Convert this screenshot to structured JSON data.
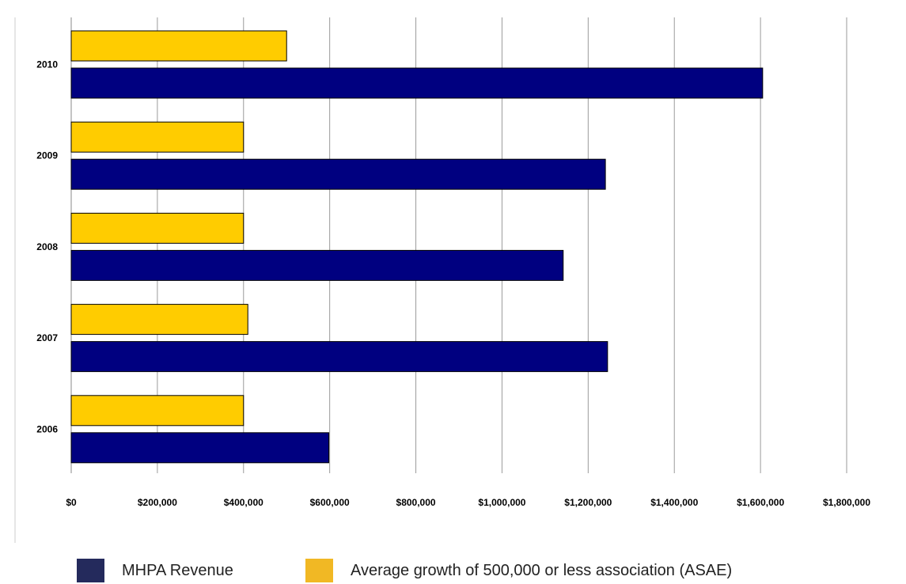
{
  "chart_data": {
    "type": "bar",
    "orientation": "horizontal",
    "categories": [
      "2010",
      "2009",
      "2008",
      "2007",
      "2006"
    ],
    "series": [
      {
        "name": "Average growth of 500,000 or less association (ASAE)",
        "color": "#ffcc00",
        "values": [
          500000,
          400000,
          400000,
          410000,
          400000
        ]
      },
      {
        "name": "MHPA Revenue",
        "color": "#000080",
        "values": [
          1605000,
          1240000,
          1142000,
          1245000,
          598000
        ]
      }
    ],
    "x_ticks": [
      "$0",
      "$200,000",
      "$400,000",
      "$600,000",
      "$800,000",
      "$1,000,000",
      "$1,200,000",
      "$1,400,000",
      "$1,600,000",
      "$1,800,000"
    ],
    "xlim": [
      0,
      1800000
    ],
    "grid": "vertical",
    "legend_position": "bottom",
    "legend": [
      {
        "label": "MHPA Revenue",
        "color": "#242a5c"
      },
      {
        "label": "Average growth of 500,000 or less association (ASAE)",
        "color": "#f1b824"
      }
    ],
    "title": "",
    "xlabel": "",
    "ylabel": ""
  }
}
